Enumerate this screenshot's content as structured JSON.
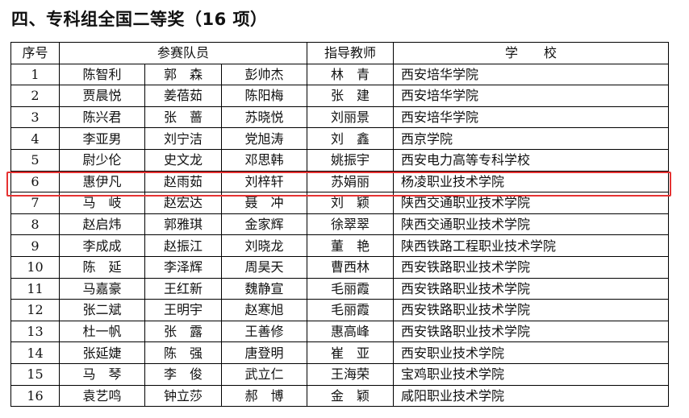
{
  "title": "四、专科组全国二等奖（16 项）",
  "headers": {
    "seq": "序号",
    "members": "参赛队员",
    "advisor": "指导教师",
    "school": "学　　校"
  },
  "rows": [
    {
      "seq": "1",
      "m1": "陈智利",
      "m2": "郭　森",
      "m3": "彭帅杰",
      "advisor": "林　青",
      "school": "西安培华学院"
    },
    {
      "seq": "2",
      "m1": "贾晨悦",
      "m2": "姜蓓茹",
      "m3": "陈阳梅",
      "advisor": "张　建",
      "school": "西安培华学院"
    },
    {
      "seq": "3",
      "m1": "陈兴君",
      "m2": "张　蔷",
      "m3": "苏晓悦",
      "advisor": "刘丽景",
      "school": "西安培华学院"
    },
    {
      "seq": "4",
      "m1": "李亚男",
      "m2": "刘宁洁",
      "m3": "党旭涛",
      "advisor": "刘　鑫",
      "school": "西京学院"
    },
    {
      "seq": "5",
      "m1": "尉少伦",
      "m2": "史文龙",
      "m3": "邓思韩",
      "advisor": "姚振宇",
      "school": "西安电力高等专科学校"
    },
    {
      "seq": "6",
      "m1": "惠伊凡",
      "m2": "赵雨茹",
      "m3": "刘梓轩",
      "advisor": "苏娟丽",
      "school": "杨凌职业技术学院"
    },
    {
      "seq": "7",
      "m1": "马　岐",
      "m2": "赵宏达",
      "m3": "聂　冲",
      "advisor": "刘　颖",
      "school": "陕西交通职业技术学院"
    },
    {
      "seq": "8",
      "m1": "赵启炜",
      "m2": "郭雅琪",
      "m3": "金家辉",
      "advisor": "徐翠翠",
      "school": "陕西交通职业技术学院"
    },
    {
      "seq": "9",
      "m1": "李成成",
      "m2": "赵振江",
      "m3": "刘晓龙",
      "advisor": "董　艳",
      "school": "陕西铁路工程职业技术学院"
    },
    {
      "seq": "10",
      "m1": "陈　延",
      "m2": "李泽辉",
      "m3": "周昊天",
      "advisor": "曹西林",
      "school": "西安铁路职业技术学院"
    },
    {
      "seq": "11",
      "m1": "马嘉豪",
      "m2": "王红新",
      "m3": "魏静宣",
      "advisor": "毛丽霞",
      "school": "西安铁路职业技术学院"
    },
    {
      "seq": "12",
      "m1": "张二斌",
      "m2": "王明宇",
      "m3": "赵寒旭",
      "advisor": "毛丽霞",
      "school": "西安铁路职业技术学院"
    },
    {
      "seq": "13",
      "m1": "杜一帆",
      "m2": "张　露",
      "m3": "王善修",
      "advisor": "惠高峰",
      "school": "西安铁路职业技术学院"
    },
    {
      "seq": "14",
      "m1": "张延婕",
      "m2": "陈　强",
      "m3": "唐登明",
      "advisor": "崔　亚",
      "school": "西安职业技术学院"
    },
    {
      "seq": "15",
      "m1": "马　琴",
      "m2": "李　俊",
      "m3": "武立仁",
      "advisor": "王海荣",
      "school": "宝鸡职业技术学院"
    },
    {
      "seq": "16",
      "m1": "袁艺鸣",
      "m2": "钟立莎",
      "m3": "郝　博",
      "advisor": "金　颖",
      "school": "咸阳职业技术学院"
    }
  ],
  "highlight_color": "#e63232",
  "highlighted_row": "6"
}
